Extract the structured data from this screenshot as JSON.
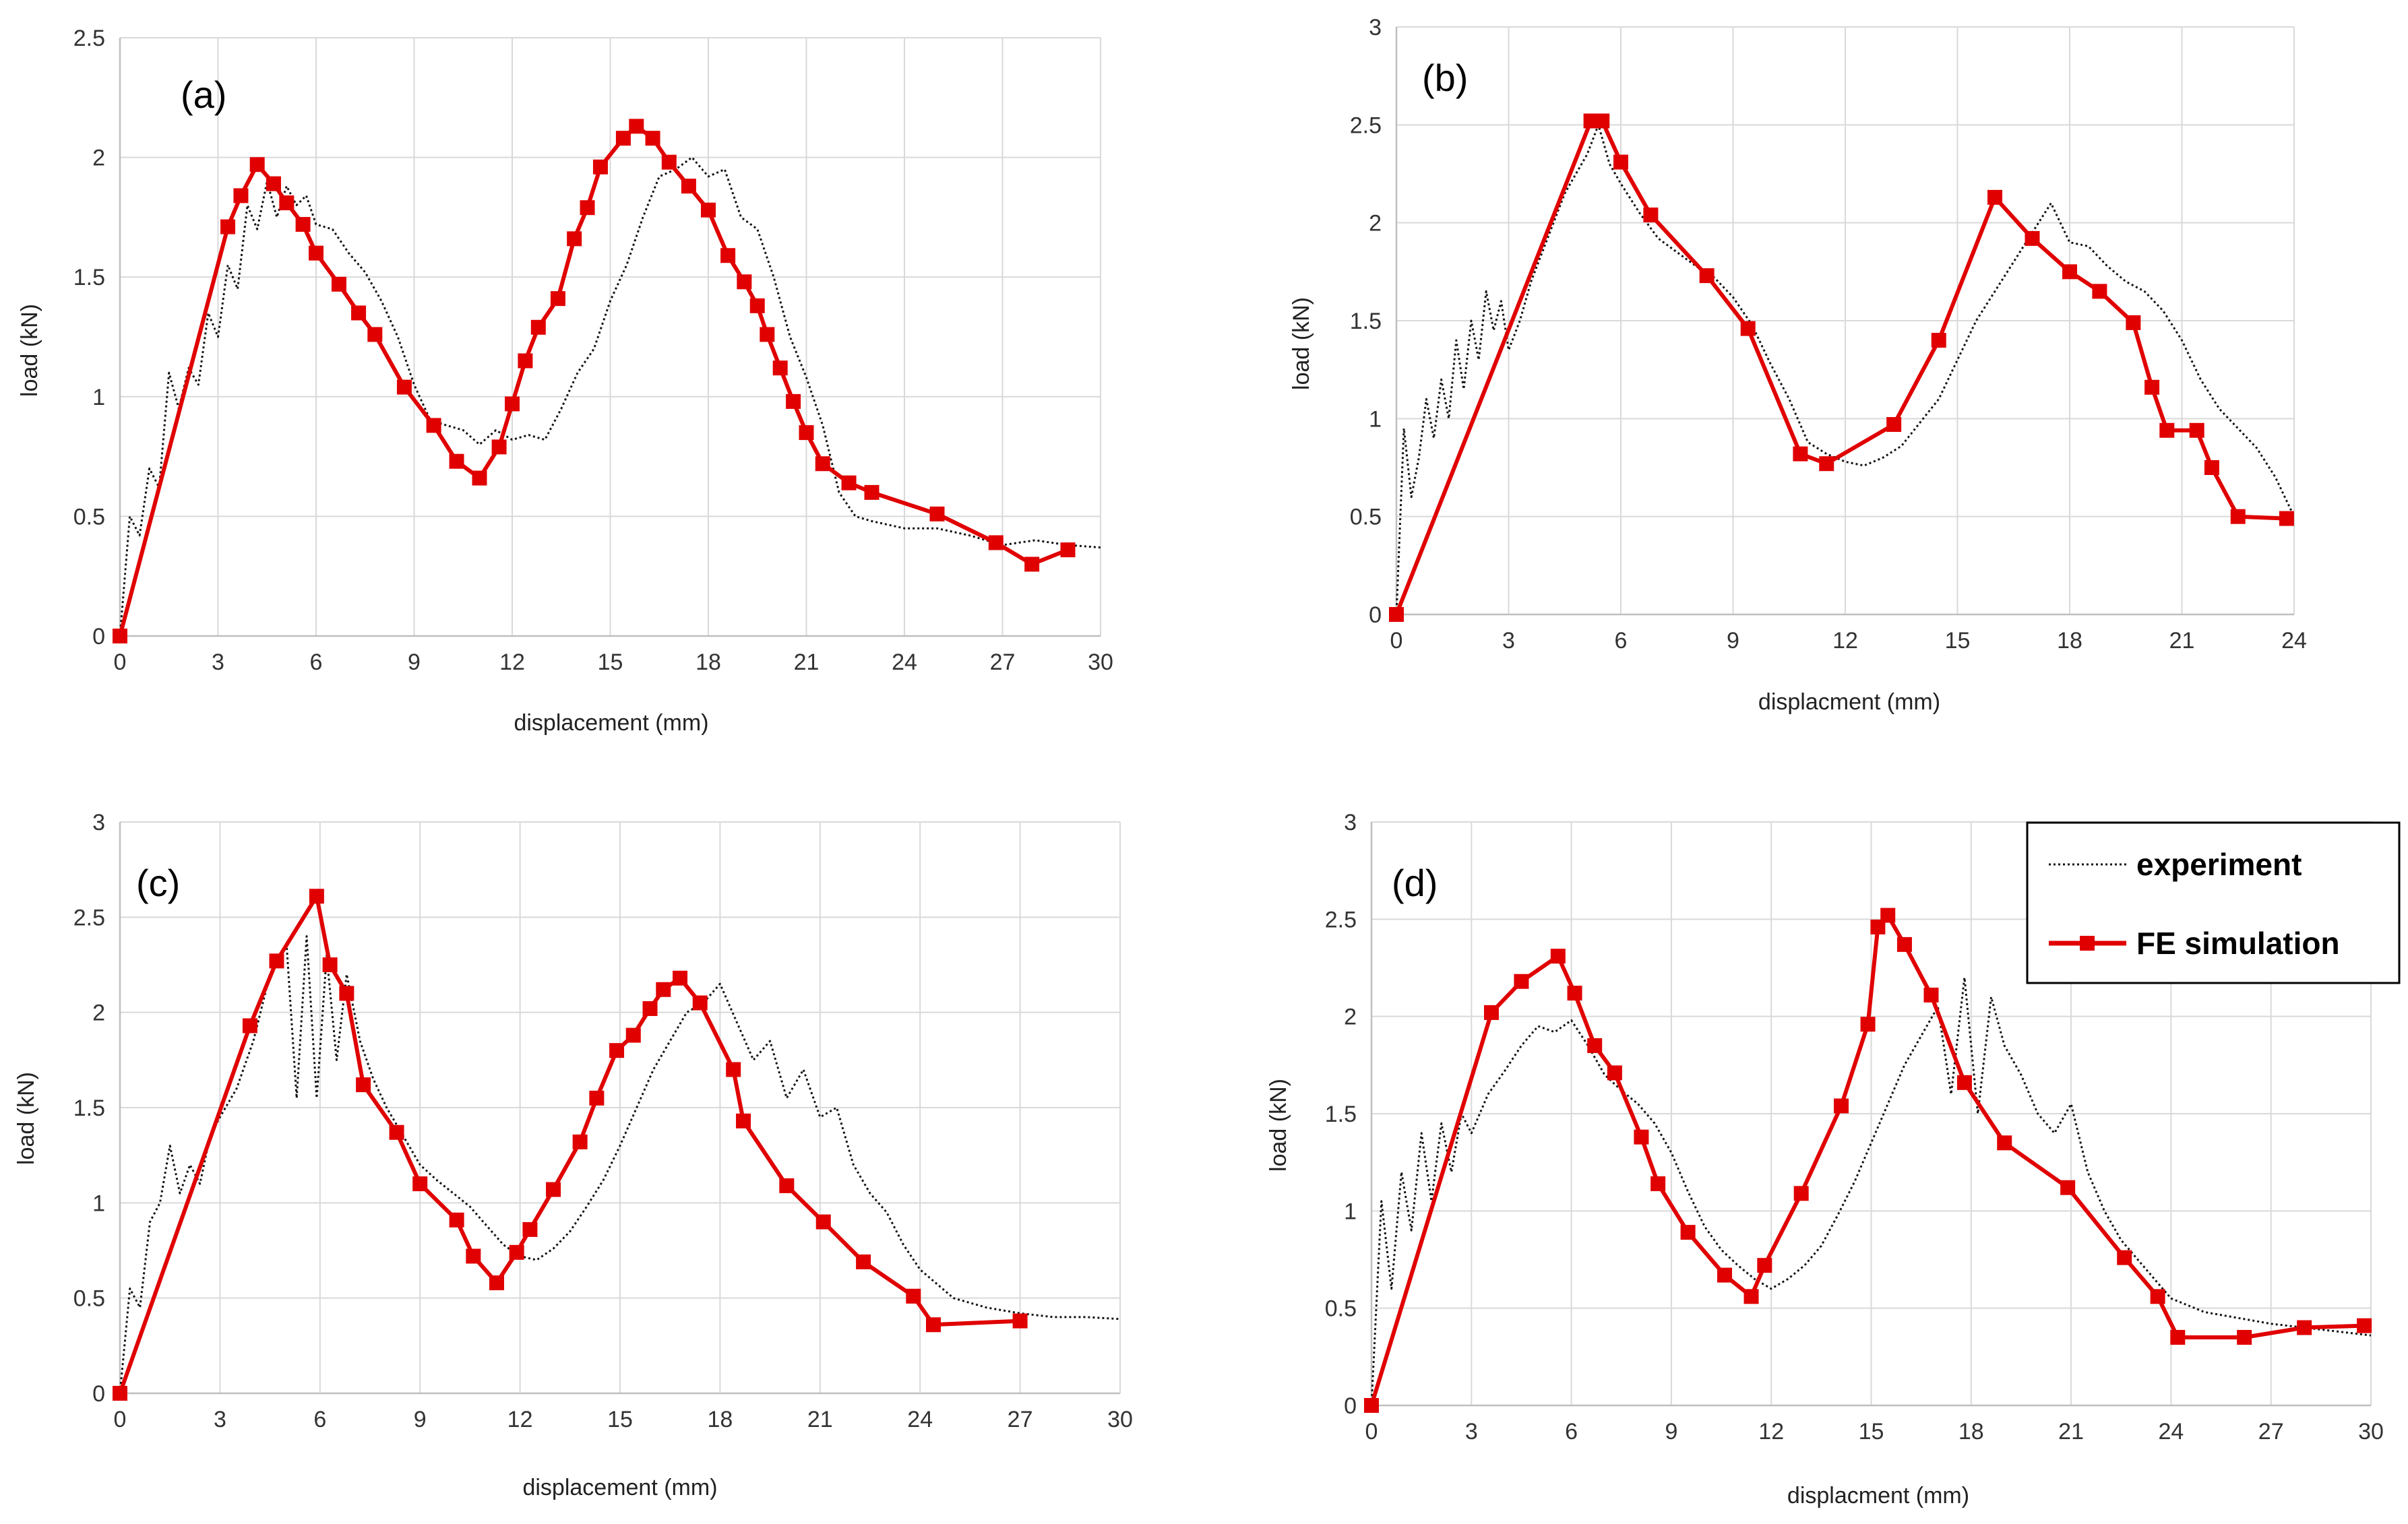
{
  "colors": {
    "simulation": "#e00000",
    "experiment": "#111111",
    "grid": "#d9d9d9",
    "axis": "#bfbfbf"
  },
  "legend": {
    "experiment_label": "experiment",
    "simulation_label": "FE simulation",
    "border_color": "#000000"
  },
  "chart_data": [
    {
      "type": "line",
      "panel_label": "(a)",
      "xlabel": "displacement (mm)",
      "ylabel": "load (kN)",
      "xlim": [
        0,
        30
      ],
      "ylim": [
        0,
        2.5
      ],
      "xticks": [
        0,
        3,
        6,
        9,
        12,
        15,
        18,
        21,
        24,
        27,
        30
      ],
      "yticks": [
        0,
        0.5,
        1,
        1.5,
        2,
        2.5
      ],
      "grid": true,
      "series": [
        {
          "name": "experiment",
          "style": "dotted",
          "x": [
            0,
            0.3,
            0.6,
            0.9,
            1.2,
            1.5,
            1.8,
            2.1,
            2.4,
            2.7,
            3.0,
            3.3,
            3.6,
            3.9,
            4.2,
            4.5,
            4.8,
            5.1,
            5.4,
            5.7,
            6.0,
            6.5,
            7.0,
            7.5,
            8.0,
            8.5,
            9.0,
            9.5,
            10.0,
            10.5,
            11.0,
            11.5,
            12.0,
            12.5,
            13.0,
            13.5,
            14.0,
            14.5,
            15.0,
            15.5,
            16.0,
            16.5,
            17.0,
            17.5,
            18.0,
            18.5,
            19.0,
            19.5,
            20.0,
            20.5,
            21.0,
            21.5,
            22.0,
            22.5,
            23.0,
            24.0,
            25.0,
            26.0,
            27.0,
            28.0,
            29.0,
            30.0
          ],
          "y": [
            0,
            0.5,
            0.42,
            0.7,
            0.62,
            1.1,
            0.95,
            1.12,
            1.05,
            1.35,
            1.25,
            1.55,
            1.45,
            1.8,
            1.7,
            1.9,
            1.75,
            1.88,
            1.8,
            1.84,
            1.72,
            1.7,
            1.6,
            1.52,
            1.4,
            1.25,
            1.05,
            0.9,
            0.88,
            0.86,
            0.8,
            0.86,
            0.82,
            0.84,
            0.82,
            0.95,
            1.1,
            1.2,
            1.4,
            1.55,
            1.75,
            1.92,
            1.95,
            2.0,
            1.92,
            1.95,
            1.75,
            1.7,
            1.5,
            1.25,
            1.08,
            0.88,
            0.6,
            0.5,
            0.48,
            0.45,
            0.45,
            0.42,
            0.38,
            0.4,
            0.38,
            0.37
          ]
        },
        {
          "name": "FE simulation",
          "style": "solid-square",
          "x": [
            0,
            3.3,
            3.7,
            4.2,
            4.7,
            5.1,
            5.6,
            6.0,
            6.7,
            7.3,
            7.8,
            8.7,
            9.6,
            10.3,
            11.0,
            11.6,
            12.0,
            12.4,
            12.8,
            13.4,
            13.9,
            14.3,
            14.7,
            15.4,
            15.8,
            16.3,
            16.8,
            17.4,
            18.0,
            18.6,
            19.1,
            19.5,
            19.8,
            20.2,
            20.6,
            21.0,
            21.5,
            22.3,
            23.0,
            25.0,
            26.8,
            27.9,
            29.0
          ],
          "y": [
            0,
            1.71,
            1.84,
            1.97,
            1.89,
            1.81,
            1.72,
            1.6,
            1.47,
            1.35,
            1.26,
            1.04,
            0.88,
            0.73,
            0.66,
            0.79,
            0.97,
            1.15,
            1.29,
            1.41,
            1.66,
            1.79,
            1.96,
            2.08,
            2.13,
            2.08,
            1.98,
            1.88,
            1.78,
            1.59,
            1.48,
            1.38,
            1.26,
            1.12,
            0.98,
            0.85,
            0.72,
            0.64,
            0.6,
            0.51,
            0.39,
            0.3,
            0.36
          ]
        }
      ]
    },
    {
      "type": "line",
      "panel_label": "(b)",
      "xlabel": "displacment (mm)",
      "ylabel": "load (kN)",
      "xlim": [
        0,
        24
      ],
      "ylim": [
        0,
        3
      ],
      "xticks": [
        0,
        3,
        6,
        9,
        12,
        15,
        18,
        21,
        24
      ],
      "yticks": [
        0,
        0.5,
        1,
        1.5,
        2,
        2.5,
        3
      ],
      "grid": true,
      "series": [
        {
          "name": "experiment",
          "style": "dotted",
          "x": [
            0,
            0.2,
            0.4,
            0.6,
            0.8,
            1.0,
            1.2,
            1.4,
            1.6,
            1.8,
            2.0,
            2.2,
            2.4,
            2.6,
            2.8,
            3.0,
            3.3,
            3.6,
            3.9,
            4.2,
            4.5,
            4.8,
            5.1,
            5.4,
            5.7,
            6.0,
            6.5,
            7.0,
            7.5,
            8.0,
            8.5,
            9.0,
            9.5,
            10.0,
            10.5,
            11.0,
            11.5,
            12.0,
            12.5,
            13.0,
            13.5,
            14.0,
            14.5,
            15.0,
            15.5,
            16.0,
            16.5,
            17.0,
            17.5,
            18.0,
            18.5,
            19.0,
            19.5,
            20.0,
            20.5,
            21.0,
            21.5,
            22.0,
            22.5,
            23.0,
            23.5,
            24.0
          ],
          "y": [
            0,
            0.95,
            0.6,
            0.8,
            1.1,
            0.9,
            1.2,
            1.0,
            1.4,
            1.15,
            1.5,
            1.3,
            1.65,
            1.45,
            1.6,
            1.35,
            1.5,
            1.7,
            1.85,
            2.0,
            2.15,
            2.25,
            2.35,
            2.5,
            2.3,
            2.2,
            2.05,
            1.92,
            1.85,
            1.78,
            1.72,
            1.62,
            1.48,
            1.28,
            1.1,
            0.88,
            0.82,
            0.78,
            0.76,
            0.8,
            0.86,
            0.98,
            1.1,
            1.3,
            1.5,
            1.65,
            1.8,
            1.95,
            2.1,
            1.9,
            1.88,
            1.78,
            1.7,
            1.65,
            1.55,
            1.4,
            1.2,
            1.05,
            0.95,
            0.85,
            0.7,
            0.5
          ]
        },
        {
          "name": "FE simulation",
          "style": "solid-square",
          "x": [
            0,
            5.2,
            5.5,
            6.0,
            6.8,
            8.3,
            9.4,
            10.8,
            11.5,
            13.3,
            14.5,
            16.0,
            17.0,
            18.0,
            18.8,
            19.7,
            20.2,
            20.6,
            21.4,
            21.8,
            22.5,
            23.8
          ],
          "y": [
            0,
            2.52,
            2.52,
            2.31,
            2.04,
            1.73,
            1.46,
            0.82,
            0.77,
            0.97,
            1.4,
            2.13,
            1.92,
            1.75,
            1.65,
            1.49,
            1.16,
            0.94,
            0.94,
            0.75,
            0.5,
            0.49
          ]
        }
      ]
    },
    {
      "type": "line",
      "panel_label": "(c)",
      "xlabel": "displacement (mm)",
      "ylabel": "load (kN)",
      "xlim": [
        0,
        30
      ],
      "ylim": [
        0,
        3
      ],
      "xticks": [
        0,
        3,
        6,
        9,
        12,
        15,
        18,
        21,
        24,
        27,
        30
      ],
      "yticks": [
        0,
        0.5,
        1,
        1.5,
        2,
        2.5,
        3
      ],
      "grid": true,
      "series": [
        {
          "name": "experiment",
          "style": "dotted",
          "x": [
            0,
            0.3,
            0.6,
            0.9,
            1.2,
            1.5,
            1.8,
            2.1,
            2.4,
            2.7,
            3.0,
            3.5,
            4.0,
            4.5,
            5.0,
            5.3,
            5.6,
            5.9,
            6.2,
            6.5,
            6.8,
            7.2,
            7.6,
            8.0,
            8.5,
            9.0,
            9.5,
            10.0,
            10.5,
            11.0,
            11.5,
            12.0,
            12.5,
            13.0,
            13.5,
            14.0,
            14.5,
            15.0,
            15.5,
            16.0,
            16.5,
            17.0,
            17.5,
            18.0,
            18.5,
            19.0,
            19.5,
            20.0,
            20.5,
            21.0,
            21.5,
            22.0,
            22.5,
            23.0,
            23.5,
            24.0,
            25.0,
            26.0,
            27.0,
            28.0,
            29.0,
            30.0
          ],
          "y": [
            0,
            0.55,
            0.45,
            0.9,
            1.0,
            1.3,
            1.05,
            1.2,
            1.1,
            1.35,
            1.45,
            1.6,
            1.85,
            2.2,
            2.35,
            1.55,
            2.4,
            1.55,
            2.3,
            1.75,
            2.2,
            1.85,
            1.65,
            1.5,
            1.35,
            1.2,
            1.12,
            1.05,
            0.98,
            0.88,
            0.78,
            0.72,
            0.7,
            0.76,
            0.85,
            0.98,
            1.12,
            1.3,
            1.5,
            1.7,
            1.85,
            2.0,
            2.05,
            2.15,
            1.95,
            1.75,
            1.85,
            1.55,
            1.7,
            1.45,
            1.5,
            1.2,
            1.05,
            0.95,
            0.78,
            0.65,
            0.5,
            0.45,
            0.42,
            0.4,
            0.4,
            0.39
          ]
        },
        {
          "name": "FE simulation",
          "style": "solid-square",
          "x": [
            0,
            3.9,
            4.7,
            5.9,
            6.3,
            6.8,
            7.3,
            8.3,
            9.0,
            10.1,
            10.6,
            11.3,
            11.9,
            12.3,
            13.0,
            13.8,
            14.3,
            14.9,
            15.4,
            15.9,
            16.3,
            16.8,
            17.4,
            18.4,
            18.7,
            20.0,
            21.1,
            22.3,
            23.8,
            24.4,
            27.0
          ],
          "y": [
            0,
            1.93,
            2.27,
            2.61,
            2.25,
            2.1,
            1.62,
            1.37,
            1.1,
            0.91,
            0.72,
            0.58,
            0.74,
            0.86,
            1.07,
            1.32,
            1.55,
            1.8,
            1.88,
            2.02,
            2.12,
            2.18,
            2.05,
            1.7,
            1.43,
            1.09,
            0.9,
            0.69,
            0.51,
            0.36,
            0.38
          ]
        }
      ]
    },
    {
      "type": "line",
      "panel_label": "(d)",
      "xlabel": "displacment (mm)",
      "ylabel": "load (kN)",
      "xlim": [
        0,
        30
      ],
      "ylim": [
        0,
        3
      ],
      "xticks": [
        0,
        3,
        6,
        9,
        12,
        15,
        18,
        21,
        24,
        27,
        30
      ],
      "yticks": [
        0,
        0.5,
        1,
        1.5,
        2,
        2.5,
        3
      ],
      "grid": true,
      "series": [
        {
          "name": "experiment",
          "style": "dotted",
          "x": [
            0,
            0.3,
            0.6,
            0.9,
            1.2,
            1.5,
            1.8,
            2.1,
            2.4,
            2.7,
            3.0,
            3.5,
            4.0,
            4.5,
            5.0,
            5.5,
            6.0,
            6.5,
            7.0,
            7.5,
            8.0,
            8.5,
            9.0,
            9.5,
            10.0,
            10.5,
            11.0,
            11.5,
            12.0,
            12.5,
            13.0,
            13.5,
            14.0,
            14.5,
            15.0,
            15.5,
            16.0,
            16.5,
            17.0,
            17.4,
            17.8,
            18.2,
            18.6,
            19.0,
            19.5,
            20.0,
            20.5,
            21.0,
            21.5,
            22.0,
            22.5,
            23.0,
            23.5,
            24.0,
            25.0,
            26.0,
            27.0,
            28.0,
            29.0,
            30.0
          ],
          "y": [
            0,
            1.05,
            0.6,
            1.2,
            0.9,
            1.4,
            1.05,
            1.45,
            1.2,
            1.5,
            1.4,
            1.6,
            1.72,
            1.85,
            1.95,
            1.92,
            1.98,
            1.85,
            1.7,
            1.62,
            1.55,
            1.45,
            1.3,
            1.1,
            0.92,
            0.8,
            0.72,
            0.65,
            0.6,
            0.65,
            0.72,
            0.82,
            0.98,
            1.15,
            1.35,
            1.55,
            1.75,
            1.9,
            2.05,
            1.6,
            2.2,
            1.5,
            2.1,
            1.85,
            1.7,
            1.5,
            1.4,
            1.55,
            1.2,
            1.0,
            0.85,
            0.75,
            0.65,
            0.55,
            0.48,
            0.45,
            0.42,
            0.4,
            0.38,
            0.36
          ]
        },
        {
          "name": "FE simulation",
          "style": "solid-square",
          "x": [
            0,
            3.6,
            4.5,
            5.6,
            6.1,
            6.7,
            7.3,
            8.1,
            8.6,
            9.5,
            10.6,
            11.4,
            11.8,
            12.9,
            14.1,
            14.9,
            15.2,
            15.5,
            16.0,
            16.8,
            17.8,
            19.0,
            20.9,
            22.6,
            23.6,
            24.2,
            26.2,
            28.0,
            29.8
          ],
          "y": [
            0,
            2.02,
            2.18,
            2.31,
            2.12,
            1.85,
            1.71,
            1.38,
            1.14,
            0.89,
            0.67,
            0.56,
            0.72,
            1.09,
            1.54,
            1.96,
            2.46,
            2.52,
            2.37,
            2.11,
            1.66,
            1.35,
            1.12,
            0.76,
            0.56,
            0.35,
            0.35,
            0.4,
            0.41
          ]
        }
      ]
    }
  ]
}
